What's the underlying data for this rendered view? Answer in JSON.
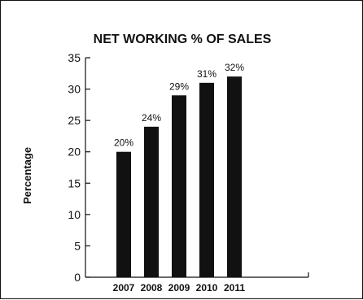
{
  "chart_data": {
    "type": "bar",
    "title": "NET WORKING % OF SALES",
    "xlabel": "",
    "ylabel": "Percentage",
    "categories": [
      "2007",
      "2008",
      "2009",
      "2010",
      "2011"
    ],
    "values": [
      20,
      24,
      29,
      31,
      32
    ],
    "data_labels": [
      "20%",
      "24%",
      "29%",
      "31%",
      "32%"
    ],
    "ylim": [
      0,
      35
    ],
    "yticks": [
      0,
      5,
      10,
      15,
      20,
      25,
      30,
      35
    ],
    "grid": false,
    "bar_color": "#111111"
  }
}
